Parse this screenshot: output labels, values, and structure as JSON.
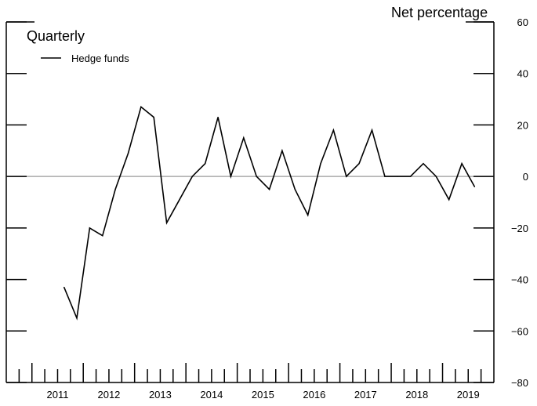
{
  "chart_data": {
    "type": "line",
    "subtitle": "Quarterly",
    "ylabel": "Net percentage",
    "ylim": [
      -80,
      60
    ],
    "yticks": [
      60,
      40,
      20,
      0,
      -20,
      -40,
      -60,
      -80
    ],
    "ytick_labels": [
      "60",
      "40",
      "20",
      "0",
      "−20",
      "−40",
      "−60",
      "−80"
    ],
    "xlim": [
      2010.5,
      2020.0
    ],
    "year_labels": [
      "2011",
      "2012",
      "2013",
      "2014",
      "2015",
      "2016",
      "2017",
      "2018",
      "2019"
    ],
    "reference_line": 0,
    "legend_location": "top-left",
    "series": [
      {
        "name": "Hedge funds",
        "color": "#000000",
        "points": [
          [
            "2011-Q3",
            -43
          ],
          [
            "2011-Q4",
            -55
          ],
          [
            "2012-Q1",
            -20
          ],
          [
            "2012-Q2",
            -23
          ],
          [
            "2012-Q3",
            -5
          ],
          [
            "2012-Q4",
            9
          ],
          [
            "2013-Q1",
            27
          ],
          [
            "2013-Q2",
            23
          ],
          [
            "2013-Q3",
            -18
          ],
          [
            "2013-Q4",
            -9
          ],
          [
            "2014-Q1",
            0
          ],
          [
            "2014-Q2",
            5
          ],
          [
            "2014-Q3",
            23
          ],
          [
            "2014-Q4",
            0
          ],
          [
            "2015-Q1",
            15
          ],
          [
            "2015-Q2",
            0
          ],
          [
            "2015-Q3",
            -5
          ],
          [
            "2015-Q4",
            10
          ],
          [
            "2016-Q1",
            -5
          ],
          [
            "2016-Q2",
            -15
          ],
          [
            "2016-Q3",
            5
          ],
          [
            "2016-Q4",
            18
          ],
          [
            "2017-Q1",
            0
          ],
          [
            "2017-Q2",
            5
          ],
          [
            "2017-Q3",
            18
          ],
          [
            "2017-Q4",
            0
          ],
          [
            "2018-Q1",
            0
          ],
          [
            "2018-Q2",
            0
          ],
          [
            "2018-Q3",
            5
          ],
          [
            "2018-Q4",
            0
          ],
          [
            "2019-Q1",
            -9
          ],
          [
            "2019-Q2",
            5
          ],
          [
            "2019-Q3",
            -4
          ]
        ]
      }
    ]
  }
}
